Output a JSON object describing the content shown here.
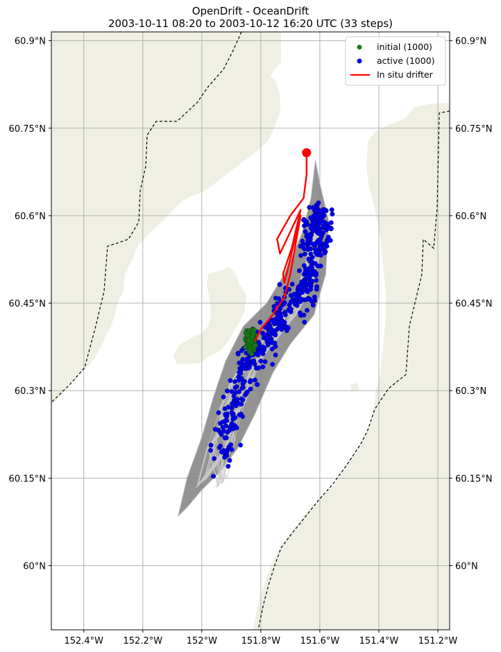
{
  "title": {
    "line1": "OpenDrift - OceanDrift",
    "line2": "2003-10-11 08:20 to 2003-10-12 16:20 UTC (33 steps)"
  },
  "colors": {
    "land": "#efefe3",
    "sea": "#ffffff",
    "grid": "#b0b0b0",
    "trajectory": "#808080",
    "initial": "#1a7a1a",
    "active": "#0000e6",
    "drifter": "#ff0000",
    "border": "#000000"
  },
  "chart_data": {
    "type": "scatter",
    "map_extent": {
      "lon": [
        -152.51,
        -151.16
      ],
      "lat": [
        59.89,
        60.915
      ]
    },
    "lon_ticks": [
      {
        "value": -152.4,
        "label": "152.4°W"
      },
      {
        "value": -152.2,
        "label": "152.2°W"
      },
      {
        "value": -152.0,
        "label": "152°W"
      },
      {
        "value": -151.8,
        "label": "151.8°W"
      },
      {
        "value": -151.6,
        "label": "151.6°W"
      },
      {
        "value": -151.4,
        "label": "151.4°W"
      },
      {
        "value": -151.2,
        "label": "151.2°W"
      }
    ],
    "lat_ticks": [
      {
        "value": 60.9,
        "label": "60.9°N"
      },
      {
        "value": 60.75,
        "label": "60.75°N"
      },
      {
        "value": 60.6,
        "label": "60.6°N"
      },
      {
        "value": 60.45,
        "label": "60.45°N"
      },
      {
        "value": 60.3,
        "label": "60.3°N"
      },
      {
        "value": 60.15,
        "label": "60.15°N"
      },
      {
        "value": 60.0,
        "label": "60°N"
      }
    ],
    "grid": true,
    "legend_position": "top-right",
    "legend": [
      {
        "label": "initial (1000)",
        "kind": "point",
        "color": "#1a7a1a"
      },
      {
        "label": "active (1000)",
        "kind": "point",
        "color": "#0000e6"
      },
      {
        "label": "In situ drifter",
        "kind": "line",
        "color": "#ff0000"
      }
    ],
    "initial_cluster": {
      "center_lon": -151.835,
      "center_lat": 60.386,
      "spread_lon": 0.014,
      "spread_lat": 0.016,
      "count": 1000
    },
    "active_centerline": [
      [
        -151.935,
        60.18
      ],
      [
        -151.9,
        60.26
      ],
      [
        -151.855,
        60.33
      ],
      [
        -151.82,
        60.37
      ],
      [
        -151.75,
        60.41
      ],
      [
        -151.68,
        60.45
      ],
      [
        -151.62,
        60.51
      ],
      [
        -151.615,
        60.57
      ],
      [
        -151.6,
        60.61
      ]
    ],
    "trajectory_envelope": [
      [
        -152.08,
        60.085
      ],
      [
        -152.05,
        60.15
      ],
      [
        -152.0,
        60.22
      ],
      [
        -151.96,
        60.29
      ],
      [
        -151.92,
        60.35
      ],
      [
        -151.86,
        60.41
      ],
      [
        -151.78,
        60.45
      ],
      [
        -151.72,
        60.5
      ],
      [
        -151.66,
        60.57
      ],
      [
        -151.63,
        60.63
      ],
      [
        -151.615,
        60.695
      ],
      [
        -151.6,
        60.655
      ],
      [
        -151.57,
        60.59
      ],
      [
        -151.58,
        60.5
      ],
      [
        -151.62,
        60.43
      ],
      [
        -151.7,
        60.38
      ],
      [
        -151.76,
        60.33
      ],
      [
        -151.82,
        60.26
      ],
      [
        -151.88,
        60.2
      ],
      [
        -151.94,
        60.16
      ],
      [
        -152.0,
        60.13
      ],
      [
        -152.05,
        60.1
      ]
    ],
    "drifter_track": [
      [
        -151.645,
        60.708
      ],
      [
        -151.645,
        60.67
      ],
      [
        -151.655,
        60.63
      ],
      [
        -151.7,
        60.6
      ],
      [
        -151.745,
        60.56
      ],
      [
        -151.735,
        60.535
      ],
      [
        -151.665,
        60.61
      ],
      [
        -151.695,
        60.545
      ],
      [
        -151.725,
        60.5
      ],
      [
        -151.72,
        60.485
      ],
      [
        -151.665,
        60.6
      ],
      [
        -151.7,
        60.5
      ],
      [
        -151.72,
        60.46
      ],
      [
        -151.76,
        60.43
      ],
      [
        -151.8,
        60.405
      ],
      [
        -151.82,
        60.385
      ]
    ],
    "drifter_start": {
      "lon": -151.645,
      "lat": 60.708
    }
  }
}
